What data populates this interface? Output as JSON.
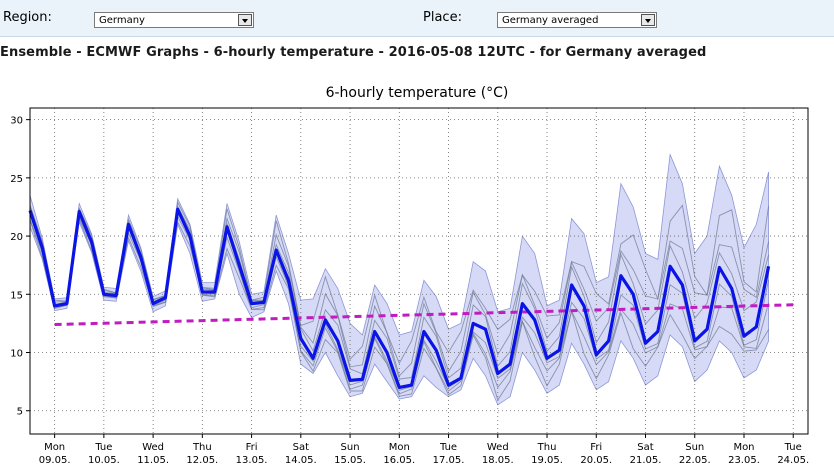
{
  "header": {
    "region_label": "Region:",
    "region_value": "Germany",
    "place_label": "Place:",
    "place_value": "Germany averaged"
  },
  "page_title": "Ensemble - ECMWF Graphs - 6-hourly temperature - 2016-05-08 12UTC - for Germany averaged",
  "chart_data": {
    "type": "line",
    "title": "6-hourly temperature (°C)",
    "ylim": [
      3,
      31
    ],
    "yticks": [
      5,
      10,
      15,
      20,
      25,
      30
    ],
    "xlim": [
      -0.5,
      15.3
    ],
    "grid": true,
    "x_tick_labels": [
      {
        "day": "Mon",
        "date": "09.05."
      },
      {
        "day": "Tue",
        "date": "10.05."
      },
      {
        "day": "Wed",
        "date": "11.05."
      },
      {
        "day": "Thu",
        "date": "12.05."
      },
      {
        "day": "Fri",
        "date": "13.05."
      },
      {
        "day": "Sat",
        "date": "14.05."
      },
      {
        "day": "Sun",
        "date": "15.05."
      },
      {
        "day": "Mon",
        "date": "16.05."
      },
      {
        "day": "Tue",
        "date": "17.05."
      },
      {
        "day": "Wed",
        "date": "18.05."
      },
      {
        "day": "Thu",
        "date": "19.05."
      },
      {
        "day": "Fri",
        "date": "20.05."
      },
      {
        "day": "Sat",
        "date": "21.05."
      },
      {
        "day": "Sun",
        "date": "22.05."
      },
      {
        "day": "Mon",
        "date": "23.05."
      },
      {
        "day": "Tue",
        "date": "24.05."
      }
    ],
    "x_step_days": 0.25,
    "x_start_day": -0.5,
    "series": [
      {
        "name": "",
        "style": "main",
        "color": "#0a14e6",
        "values": [
          22.2,
          19.0,
          14.0,
          14.2,
          22.1,
          19.5,
          15.0,
          14.9,
          21.0,
          18.2,
          14.2,
          14.7,
          22.3,
          20.0,
          15.2,
          15.2,
          20.8,
          17.5,
          14.2,
          14.3,
          18.8,
          16.2,
          11.2,
          9.5,
          12.8,
          11.0,
          7.6,
          7.7,
          11.8,
          10.0,
          7.0,
          7.2,
          11.8,
          10.2,
          7.2,
          7.8,
          12.5,
          12.0,
          8.2,
          9.0,
          14.2,
          12.8,
          9.5,
          10.2,
          15.8,
          14.0,
          9.8,
          11.0,
          16.6,
          15.0,
          10.8,
          11.8,
          17.4,
          15.8,
          11.0,
          12.0,
          17.3,
          15.5,
          11.4,
          12.2,
          17.4
        ]
      },
      {
        "name": "",
        "style": "trend",
        "color": "#c11cc1",
        "x": [
          0,
          15
        ],
        "values": [
          12.4,
          14.1
        ]
      }
    ],
    "spread_upper": [
      23.5,
      19.8,
      14.6,
      14.7,
      22.8,
      20.2,
      15.6,
      15.5,
      21.8,
      19.0,
      14.8,
      15.3,
      23.2,
      21.0,
      16.0,
      16.0,
      22.8,
      19.5,
      15.0,
      15.2,
      21.8,
      18.5,
      14.5,
      14.6,
      17.2,
      15.5,
      12.5,
      11.5,
      15.8,
      14.2,
      11.5,
      11.8,
      16.2,
      14.8,
      12.0,
      12.5,
      17.8,
      17.0,
      13.5,
      13.8,
      20.0,
      18.5,
      14.0,
      14.5,
      21.5,
      20.2,
      16.0,
      16.5,
      24.5,
      22.5,
      18.5,
      18.0,
      27.0,
      24.5,
      18.5,
      20.0,
      26.0,
      23.5,
      19.0,
      21.0,
      25.5
    ],
    "spread_lower": [
      20.8,
      18.0,
      13.6,
      13.8,
      21.2,
      18.6,
      14.5,
      14.4,
      19.6,
      17.0,
      13.5,
      14.0,
      21.0,
      18.5,
      14.4,
      14.6,
      18.5,
      15.0,
      13.0,
      13.5,
      17.0,
      14.2,
      9.0,
      8.2,
      10.0,
      8.0,
      6.2,
      6.5,
      9.0,
      7.5,
      6.0,
      6.2,
      8.0,
      7.0,
      6.2,
      6.8,
      9.5,
      8.0,
      5.5,
      6.2,
      10.0,
      8.5,
      6.5,
      7.2,
      10.8,
      9.0,
      6.8,
      7.5,
      11.0,
      9.5,
      7.2,
      8.0,
      11.5,
      10.5,
      7.5,
      8.5,
      11.0,
      10.0,
      7.8,
      8.5,
      11.0
    ]
  }
}
